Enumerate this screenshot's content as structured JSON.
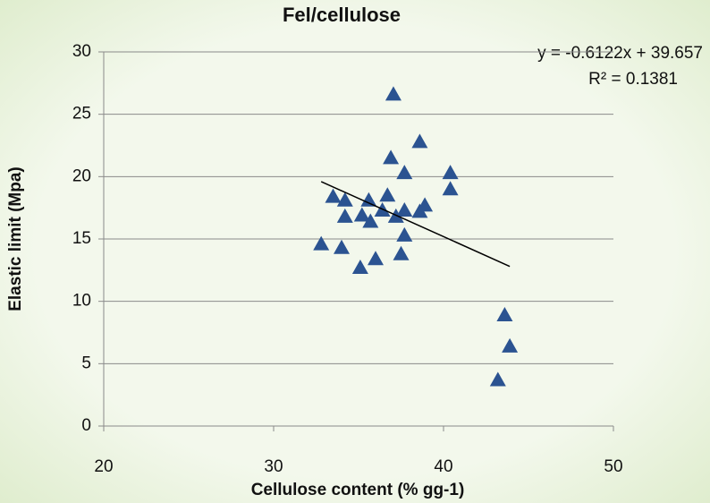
{
  "chart_data": {
    "type": "scatter",
    "title": "Fel/cellulose",
    "x_label": "Cellulose content (% gg-1)",
    "y_label": "Elastic limit (Mpa)",
    "annotations": [
      "y = -0.6122x + 39.657",
      "R² = 0.1381"
    ],
    "series": [
      {
        "color": "#2b5391",
        "x": [
          37.05,
          38.6,
          36.9,
          37.7,
          40.4,
          40.4,
          33.5,
          36.7,
          34.2,
          35.6,
          38.9,
          36.4,
          37.7,
          38.6,
          34.2,
          35.2,
          37.2,
          35.7,
          37.7,
          32.8,
          34.0,
          37.5,
          36.0,
          35.1,
          43.6,
          43.9,
          43.2
        ],
        "values": [
          26.6,
          22.8,
          21.5,
          20.3,
          20.3,
          19.0,
          18.4,
          18.5,
          18.1,
          18.1,
          17.7,
          17.3,
          17.3,
          17.2,
          16.8,
          16.9,
          16.8,
          16.4,
          15.3,
          14.6,
          14.3,
          13.8,
          13.4,
          12.7,
          8.9,
          6.4,
          3.7
        ]
      }
    ],
    "trendline": {
      "color": "#000000",
      "x": [
        32.8,
        43.9
      ],
      "values": [
        19.6,
        12.8
      ]
    },
    "xlim": [
      20,
      50
    ],
    "xticks": [
      20,
      30,
      40,
      50
    ],
    "ylim": [
      0,
      30
    ],
    "yticks": [
      0,
      5,
      10,
      15,
      20,
      25,
      30
    ],
    "grid": true
  }
}
